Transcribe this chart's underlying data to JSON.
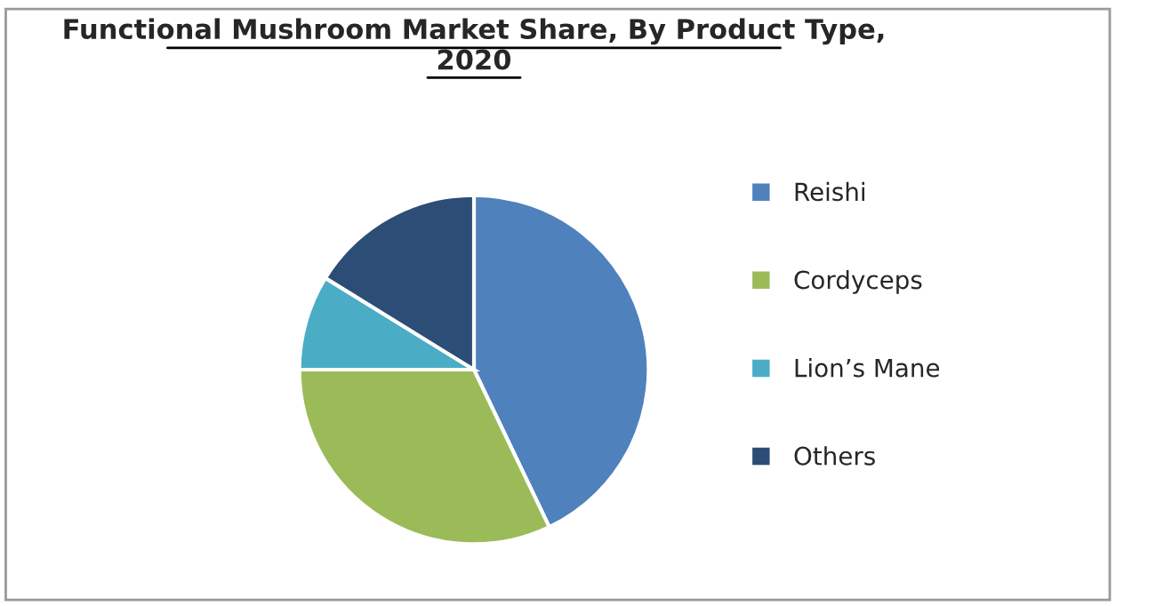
{
  "chart_data": {
    "type": "pie",
    "title": "Functional Mushroom Market Share, By Product Type,\n2020",
    "categories": [
      "Reishi",
      "Cordyceps",
      "Lion’s Mane",
      "Others"
    ],
    "values": [
      42.9,
      32.1,
      8.8,
      16.2
    ],
    "colors": [
      "#4f81bd",
      "#9bbb59",
      "#4bacc6",
      "#2c4d75"
    ],
    "legend": "right"
  }
}
